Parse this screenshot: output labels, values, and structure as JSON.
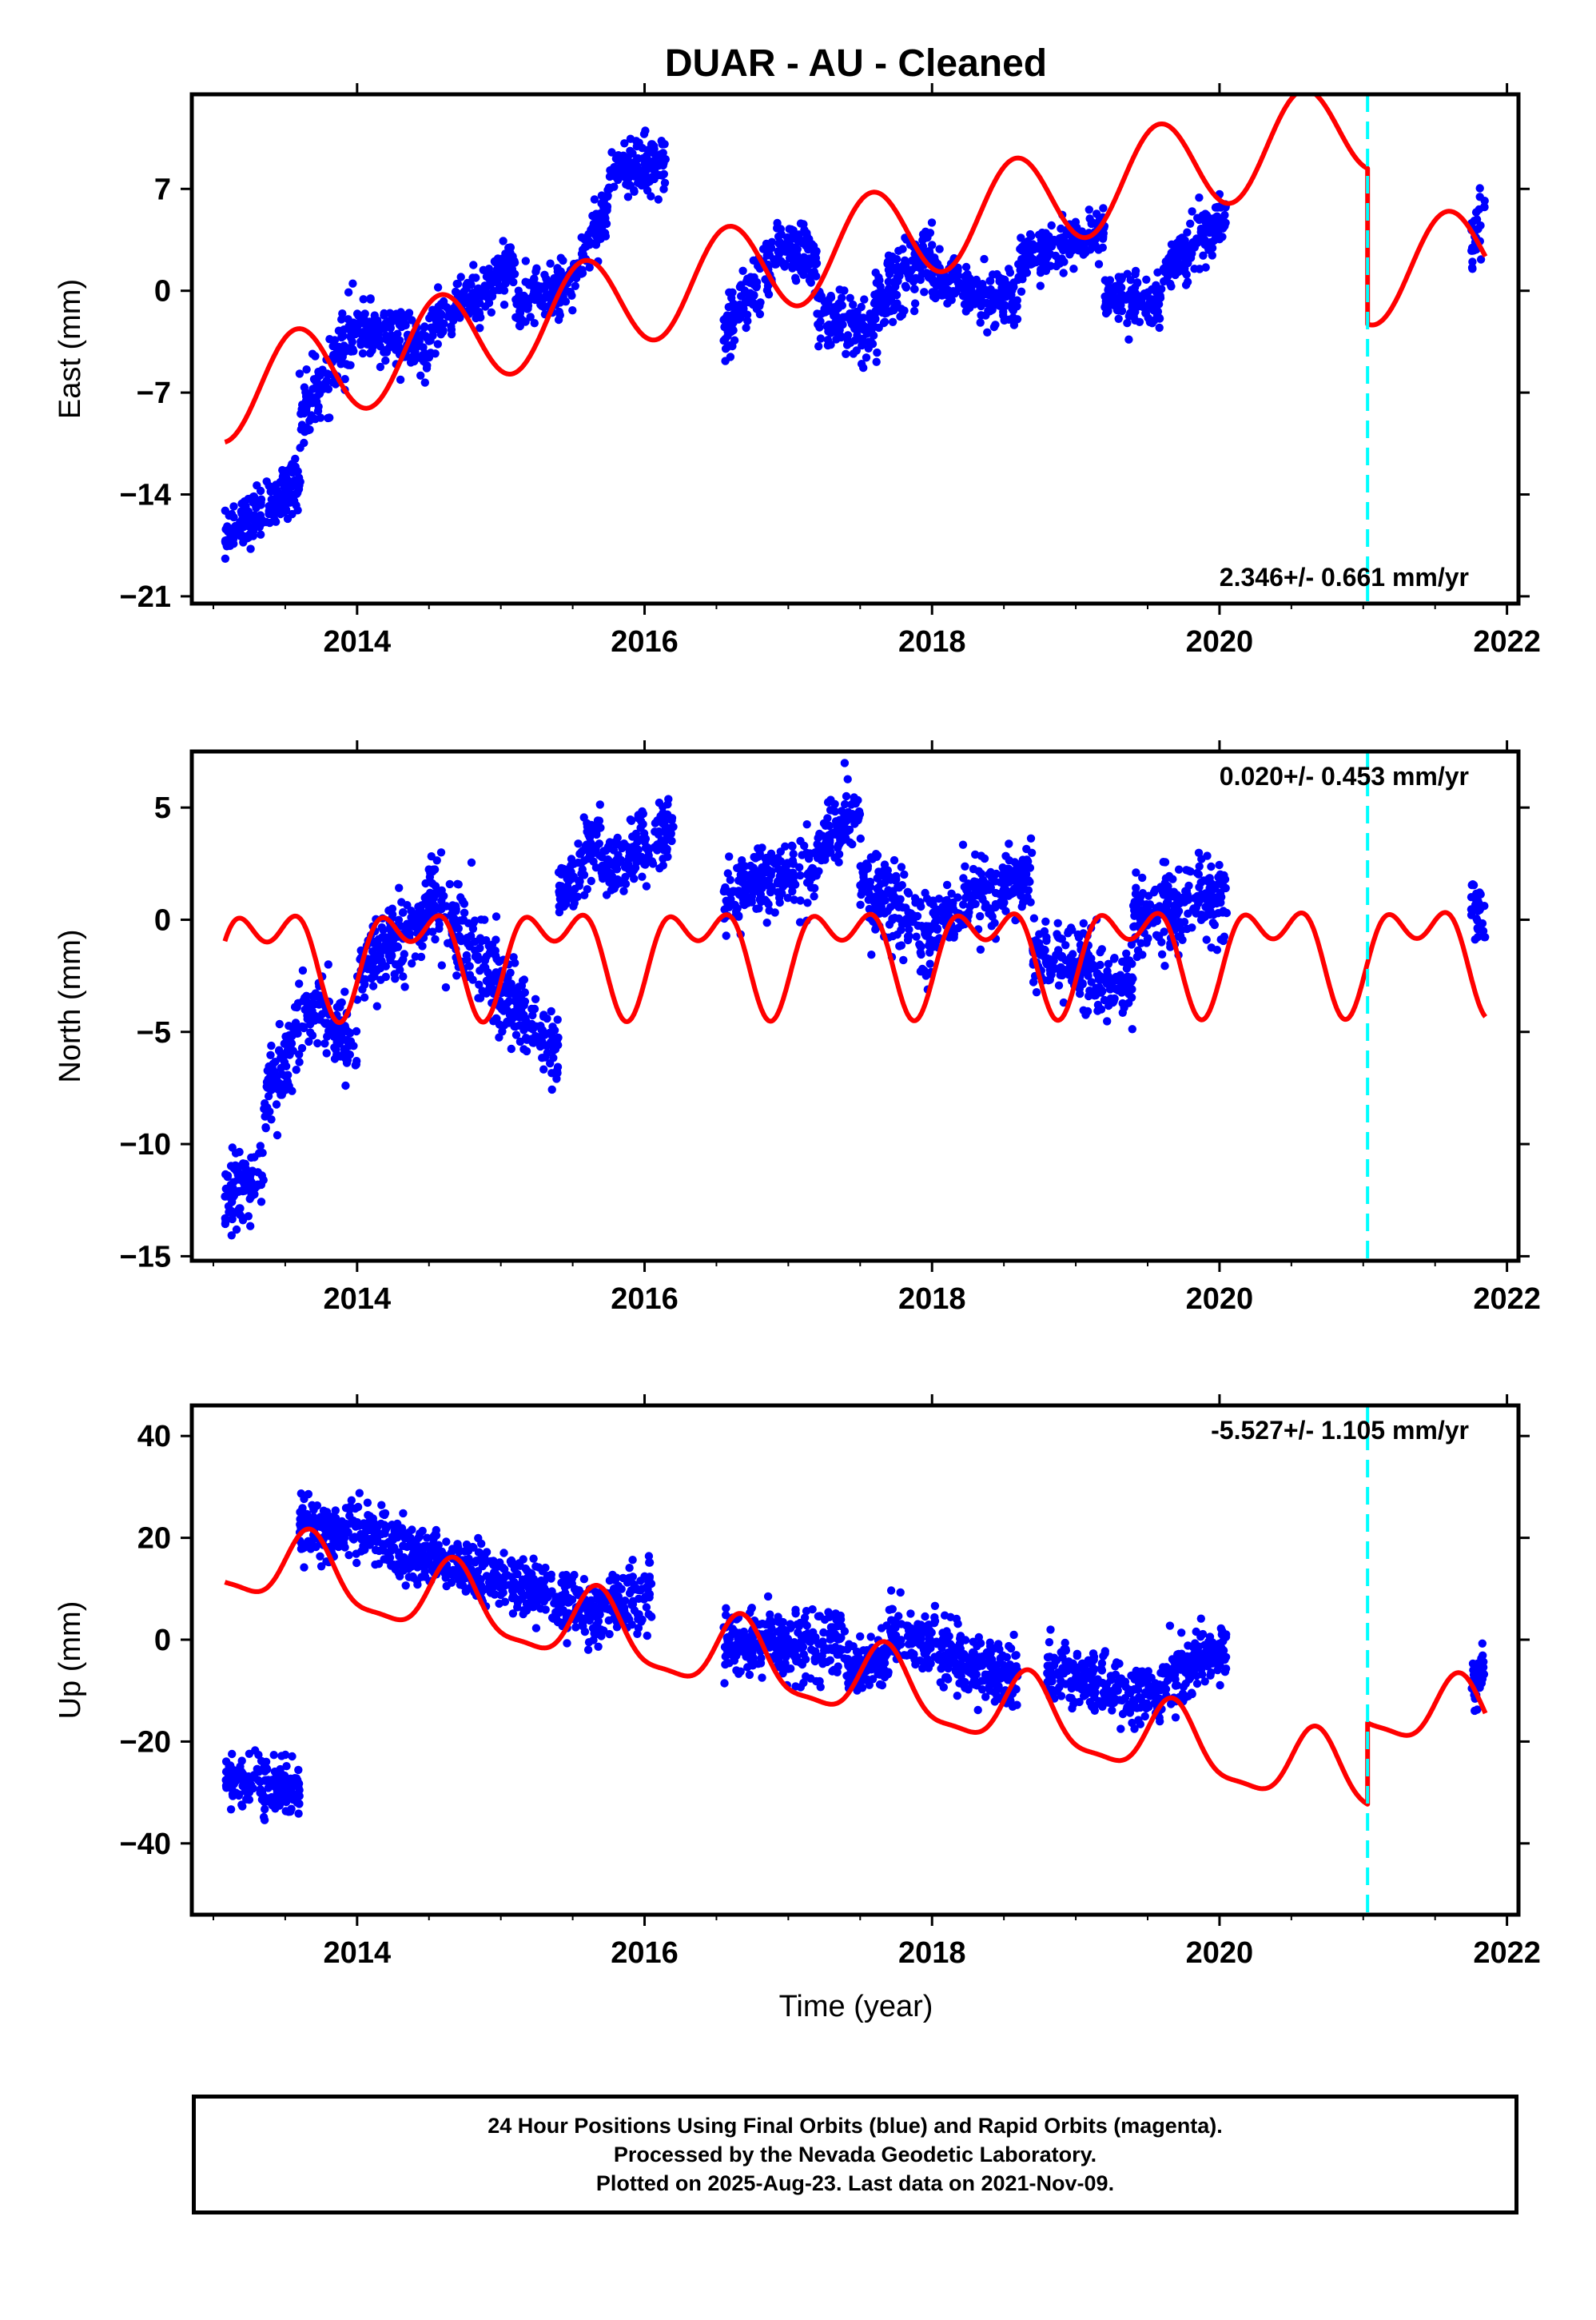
{
  "title": "DUAR  - AU - Cleaned",
  "xlabel": "Time (year)",
  "footer": {
    "line1": "24 Hour Positions Using Final Orbits (blue) and Rapid Orbits (magenta).",
    "line2": "Processed by the Nevada Geodetic Laboratory.",
    "line3": "Plotted on 2025-Aug-23. Last data on 2021-Nov-09."
  },
  "colors": {
    "data": "#0000ff",
    "model": "#ff0000",
    "event": "#00ffff",
    "axis": "#000000"
  },
  "chart_data": [
    {
      "type": "scatter",
      "name": "east",
      "ylabel": "East (mm)",
      "rate": "2.346+/- 0.661 mm/yr",
      "rate_position": "bottom-right",
      "xlim": [
        2012.85,
        2022.08
      ],
      "ylim": [
        -21.5,
        13.5
      ],
      "xticks": [
        2014,
        2016,
        2018,
        2020,
        2022
      ],
      "xticklabels": [
        "2014",
        "2016",
        "2018",
        "2020",
        "2022"
      ],
      "yticks": [
        -21,
        -14,
        -7,
        0,
        7
      ],
      "yticklabels": [
        "−21",
        "−14",
        "−7",
        "0",
        "7"
      ],
      "event_line_x": 2021.03,
      "data_segments": [
        {
          "x": [
            2013.08,
            2013.6
          ],
          "trend": [
            -17,
            -13
          ],
          "spread": 1.6
        },
        {
          "x": [
            2013.6,
            2014.0
          ],
          "trend": [
            -9,
            -2.5
          ],
          "spread": 2.2
        },
        {
          "x": [
            2014.0,
            2014.5
          ],
          "trend": [
            -2.5,
            -4
          ],
          "spread": 1.7
        },
        {
          "x": [
            2014.5,
            2015.1
          ],
          "trend": [
            -3,
            2
          ],
          "spread": 1.6
        },
        {
          "x": [
            2015.1,
            2015.5
          ],
          "trend": [
            -1,
            0.5
          ],
          "spread": 1.6
        },
        {
          "x": [
            2015.5,
            2015.75
          ],
          "trend": [
            1,
            6
          ],
          "spread": 1.6
        },
        {
          "x": [
            2015.75,
            2016.15
          ],
          "trend": [
            8,
            9
          ],
          "spread": 1.8
        },
        {
          "x": [
            2016.55,
            2016.9
          ],
          "trend": [
            -3,
            2
          ],
          "spread": 2.0
        },
        {
          "x": [
            2016.9,
            2017.2
          ],
          "trend": [
            3,
            2
          ],
          "spread": 1.8
        },
        {
          "x": [
            2017.2,
            2017.6
          ],
          "trend": [
            -1.5,
            -3
          ],
          "spread": 1.8
        },
        {
          "x": [
            2017.6,
            2018.0
          ],
          "trend": [
            -1,
            3
          ],
          "spread": 2.2
        },
        {
          "x": [
            2018.0,
            2018.6
          ],
          "trend": [
            1,
            -1
          ],
          "spread": 1.6
        },
        {
          "x": [
            2018.6,
            2019.2
          ],
          "trend": [
            2,
            4
          ],
          "spread": 1.6
        },
        {
          "x": [
            2019.2,
            2019.6
          ],
          "trend": [
            -0.5,
            -1
          ],
          "spread": 1.6
        },
        {
          "x": [
            2019.6,
            2020.05
          ],
          "trend": [
            1,
            5
          ],
          "spread": 1.8
        },
        {
          "x": [
            2021.75,
            2021.85
          ],
          "trend": [
            3,
            6
          ],
          "spread": 1.6
        }
      ],
      "model": {
        "offset": -7.1,
        "rate": 2.346,
        "x0": 2013.08,
        "a1": 3.3,
        "p1": -1.57,
        "a2": 0.0,
        "p2": 0.0,
        "jump_x": 2021.03,
        "jump": -10.7,
        "xmin": 2013.08,
        "xmax": 2021.85
      }
    },
    {
      "type": "scatter",
      "name": "north",
      "ylabel": "North (mm)",
      "rate": "0.020+/- 0.453 mm/yr",
      "rate_position": "top-right",
      "xlim": [
        2012.85,
        2022.08
      ],
      "ylim": [
        -15.2,
        7.5
      ],
      "xticks": [
        2014,
        2016,
        2018,
        2020,
        2022
      ],
      "xticklabels": [
        "2014",
        "2016",
        "2018",
        "2020",
        "2022"
      ],
      "yticks": [
        -15,
        -10,
        -5,
        0,
        5
      ],
      "yticklabels": [
        "−15",
        "−10",
        "−5",
        "0",
        "5"
      ],
      "event_line_x": 2021.03,
      "data_segments": [
        {
          "x": [
            2013.08,
            2013.35
          ],
          "trend": [
            -12,
            -11.5
          ],
          "spread": 1.5
        },
        {
          "x": [
            2013.35,
            2013.75
          ],
          "trend": [
            -8,
            -3
          ],
          "spread": 1.5
        },
        {
          "x": [
            2013.75,
            2014.0
          ],
          "trend": [
            -4,
            -6
          ],
          "spread": 1.6
        },
        {
          "x": [
            2014.0,
            2014.5
          ],
          "trend": [
            -2.5,
            0.5
          ],
          "spread": 1.5
        },
        {
          "x": [
            2014.5,
            2015.0
          ],
          "trend": [
            1,
            -3
          ],
          "spread": 2.0
        },
        {
          "x": [
            2015.0,
            2015.4
          ],
          "trend": [
            -3,
            -6
          ],
          "spread": 1.6
        },
        {
          "x": [
            2015.4,
            2015.7
          ],
          "trend": [
            1,
            4
          ],
          "spread": 1.3
        },
        {
          "x": [
            2015.7,
            2016.2
          ],
          "trend": [
            2,
            4
          ],
          "spread": 1.3
        },
        {
          "x": [
            2016.55,
            2017.2
          ],
          "trend": [
            1,
            2.5
          ],
          "spread": 1.4
        },
        {
          "x": [
            2017.2,
            2017.5
          ],
          "trend": [
            3,
            5
          ],
          "spread": 1.3
        },
        {
          "x": [
            2017.5,
            2018.0
          ],
          "trend": [
            2,
            -1
          ],
          "spread": 1.8
        },
        {
          "x": [
            2018.0,
            2018.7
          ],
          "trend": [
            0,
            2
          ],
          "spread": 1.5
        },
        {
          "x": [
            2018.7,
            2019.4
          ],
          "trend": [
            -1.5,
            -3
          ],
          "spread": 1.5
        },
        {
          "x": [
            2019.4,
            2020.05
          ],
          "trend": [
            0,
            1
          ],
          "spread": 1.6
        },
        {
          "x": [
            2021.75,
            2021.85
          ],
          "trend": [
            1,
            0
          ],
          "spread": 1.3
        }
      ],
      "model": {
        "offset": -1.5,
        "rate": 0.02,
        "x0": 2013.08,
        "a1": 1.8,
        "p1": -0.31,
        "a2": 1.3,
        "p2": 1.0,
        "jump_x": 2021.03,
        "jump": 0.0,
        "xmin": 2013.08,
        "xmax": 2021.85
      }
    },
    {
      "type": "scatter",
      "name": "up",
      "ylabel": "Up (mm)",
      "rate": "-5.527+/- 1.105 mm/yr",
      "rate_position": "top-right",
      "xlim": [
        2012.85,
        2022.08
      ],
      "ylim": [
        -54,
        46
      ],
      "xticks": [
        2014,
        2016,
        2018,
        2020,
        2022
      ],
      "xticklabels": [
        "2014",
        "2016",
        "2018",
        "2020",
        "2022"
      ],
      "yticks": [
        -40,
        -20,
        0,
        20,
        40
      ],
      "yticklabels": [
        "−40",
        "−20",
        "0",
        "20",
        "40"
      ],
      "event_line_x": 2021.03,
      "data_segments": [
        {
          "x": [
            2013.08,
            2013.6
          ],
          "trend": [
            -27,
            -30
          ],
          "spread": 4.5
        },
        {
          "x": [
            2013.6,
            2014.2
          ],
          "trend": [
            22,
            21
          ],
          "spread": 5.5
        },
        {
          "x": [
            2014.2,
            2015.0
          ],
          "trend": [
            18,
            12
          ],
          "spread": 5.0
        },
        {
          "x": [
            2015.0,
            2015.6
          ],
          "trend": [
            12,
            6
          ],
          "spread": 5.0
        },
        {
          "x": [
            2015.6,
            2016.05
          ],
          "trend": [
            4,
            10
          ],
          "spread": 5.5
        },
        {
          "x": [
            2016.55,
            2017.4
          ],
          "trend": [
            0,
            -2
          ],
          "spread": 6.0
        },
        {
          "x": [
            2017.4,
            2017.7
          ],
          "trend": [
            -6,
            -4
          ],
          "spread": 5.0
        },
        {
          "x": [
            2017.7,
            2018.6
          ],
          "trend": [
            2,
            -8
          ],
          "spread": 6.0
        },
        {
          "x": [
            2018.8,
            2019.6
          ],
          "trend": [
            -6,
            -12
          ],
          "spread": 5.0
        },
        {
          "x": [
            2019.6,
            2020.05
          ],
          "trend": [
            -8,
            -2
          ],
          "spread": 5.5
        },
        {
          "x": [
            2021.75,
            2021.85
          ],
          "trend": [
            -10,
            -5
          ],
          "spread": 5.0
        }
      ],
      "model": {
        "offset": 16.0,
        "rate": -5.527,
        "x0": 2013.08,
        "a1": 7.0,
        "p1": -2.2,
        "a2": 2.0,
        "p2": 0.5,
        "jump_x": 2021.03,
        "jump": 16.0,
        "xmin": 2013.08,
        "xmax": 2021.85
      }
    }
  ]
}
